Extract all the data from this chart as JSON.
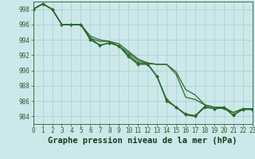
{
  "background_color": "#cce8ea",
  "grid_color": "#aacccc",
  "line_color": "#2d6a2d",
  "marker_color": "#2d6a2d",
  "title": "Graphe pression niveau de la mer (hPa)",
  "xlim": [
    0,
    23
  ],
  "ylim": [
    983.0,
    999.0
  ],
  "yticks": [
    984,
    986,
    988,
    990,
    992,
    994,
    996,
    998
  ],
  "xticks": [
    0,
    1,
    2,
    3,
    4,
    5,
    6,
    7,
    8,
    9,
    10,
    11,
    12,
    13,
    14,
    15,
    16,
    17,
    18,
    19,
    20,
    21,
    22,
    23
  ],
  "series": [
    {
      "x": [
        0,
        1,
        2,
        3,
        4,
        5,
        6,
        7,
        8,
        9,
        10,
        11,
        12,
        13,
        14,
        15,
        16,
        17,
        18,
        19,
        20,
        21,
        22,
        23
      ],
      "y": [
        998.0,
        998.7,
        998.0,
        996.0,
        996.0,
        996.0,
        994.2,
        993.3,
        993.6,
        993.2,
        992.0,
        991.0,
        990.9,
        989.2,
        986.2,
        985.2,
        984.2,
        984.0,
        985.2,
        985.0,
        985.1,
        984.2,
        984.9,
        984.9
      ],
      "marker": true,
      "linewidth": 1.0
    },
    {
      "x": [
        0,
        1,
        2,
        3,
        4,
        5,
        6,
        7,
        8,
        9,
        10,
        11,
        12,
        13,
        14,
        15,
        16,
        17,
        18,
        19,
        20,
        21,
        22,
        23
      ],
      "y": [
        998.0,
        998.7,
        998.0,
        996.0,
        996.0,
        996.0,
        994.5,
        994.0,
        993.8,
        993.2,
        992.3,
        991.3,
        990.9,
        990.8,
        990.8,
        989.5,
        986.5,
        986.2,
        985.5,
        985.2,
        985.0,
        984.5,
        985.0,
        985.0
      ],
      "marker": false,
      "linewidth": 0.9
    },
    {
      "x": [
        0,
        1,
        2,
        3,
        4,
        5,
        6,
        7,
        8,
        9,
        10,
        11,
        12,
        13,
        14,
        15,
        16,
        17,
        18,
        19,
        20,
        21,
        22,
        23
      ],
      "y": [
        998.0,
        998.7,
        998.0,
        996.0,
        996.0,
        996.0,
        994.2,
        993.8,
        993.8,
        993.5,
        992.5,
        991.5,
        991.0,
        990.8,
        990.8,
        989.8,
        987.5,
        986.8,
        985.5,
        985.2,
        985.2,
        984.5,
        985.0,
        985.0
      ],
      "marker": false,
      "linewidth": 0.9
    },
    {
      "x": [
        0,
        1,
        2,
        3,
        4,
        5,
        6,
        7,
        8,
        9,
        10,
        11,
        12,
        13,
        14,
        15,
        16,
        17,
        18,
        19,
        20,
        21,
        22,
        23
      ],
      "y": [
        998.0,
        998.7,
        998.0,
        996.0,
        996.0,
        996.0,
        994.0,
        993.3,
        993.6,
        993.2,
        991.8,
        990.8,
        990.8,
        989.2,
        986.0,
        985.2,
        984.3,
        984.1,
        985.3,
        985.0,
        985.2,
        984.1,
        985.0,
        984.9
      ],
      "marker": true,
      "linewidth": 1.0
    }
  ],
  "title_fontsize": 7.5,
  "tick_fontsize": 5.5,
  "tick_color": "#2d5a2d",
  "axis_color": "#2d5a2d",
  "title_color": "#1a3a1a"
}
